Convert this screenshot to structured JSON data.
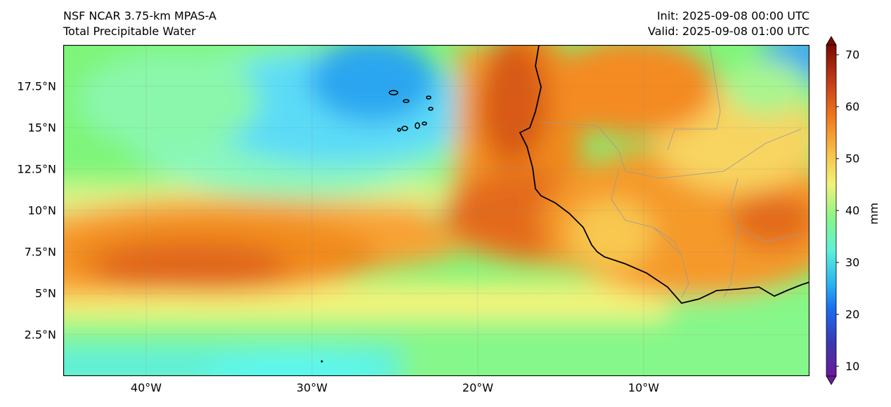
{
  "header": {
    "model_name": "NSF NCAR 3.75-km MPAS-A",
    "field_name": "Total Precipitable Water",
    "init_time": "Init: 2025-09-08 00:00 UTC",
    "valid_time": "Valid: 2025-09-08 01:00 UTC"
  },
  "map": {
    "lon_range": [
      -45,
      0
    ],
    "lat_range": [
      0,
      20
    ],
    "lat_ticks": [
      "17.5°N",
      "15°N",
      "12.5°N",
      "10°N",
      "7.5°N",
      "5°N",
      "2.5°N"
    ],
    "lon_ticks": [
      "40°W",
      "30°W",
      "20°W",
      "10°W"
    ],
    "gridlines": true
  },
  "colorbar": {
    "unit": "mm",
    "range": [
      10,
      70
    ],
    "ticks": [
      "70",
      "60",
      "50",
      "40",
      "30",
      "20",
      "10"
    ],
    "low_color": "#6a1b9a",
    "high_color": "#7a0a00"
  }
}
